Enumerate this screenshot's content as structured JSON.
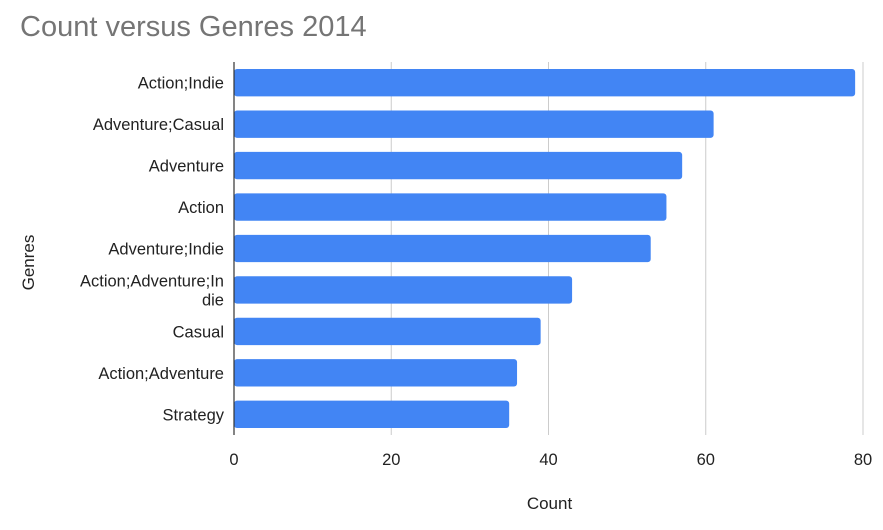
{
  "chart_data": {
    "type": "bar",
    "orientation": "horizontal",
    "title": "Count versus Genres 2014",
    "xlabel": "Count",
    "ylabel": "Genres",
    "categories": [
      "Action;Indie",
      "Adventure;Casual",
      "Adventure",
      "Action",
      "Adventure;Indie",
      "Action;Adventure;Indie",
      "Casual",
      "Action;Adventure",
      "Strategy"
    ],
    "category_label_lines": [
      [
        "Action;Indie"
      ],
      [
        "Adventure;Casual"
      ],
      [
        "Adventure"
      ],
      [
        "Action"
      ],
      [
        "Adventure;Indie"
      ],
      [
        "Action;Adventure;In",
        "die"
      ],
      [
        "Casual"
      ],
      [
        "Action;Adventure"
      ],
      [
        "Strategy"
      ]
    ],
    "values": [
      79,
      61,
      57,
      55,
      53,
      43,
      39,
      36,
      35
    ],
    "xlim": [
      0,
      80
    ],
    "xticks": [
      "0",
      "20",
      "40",
      "60",
      "80"
    ],
    "grid": true,
    "legend": "none",
    "bar_color": "#4285f4"
  }
}
